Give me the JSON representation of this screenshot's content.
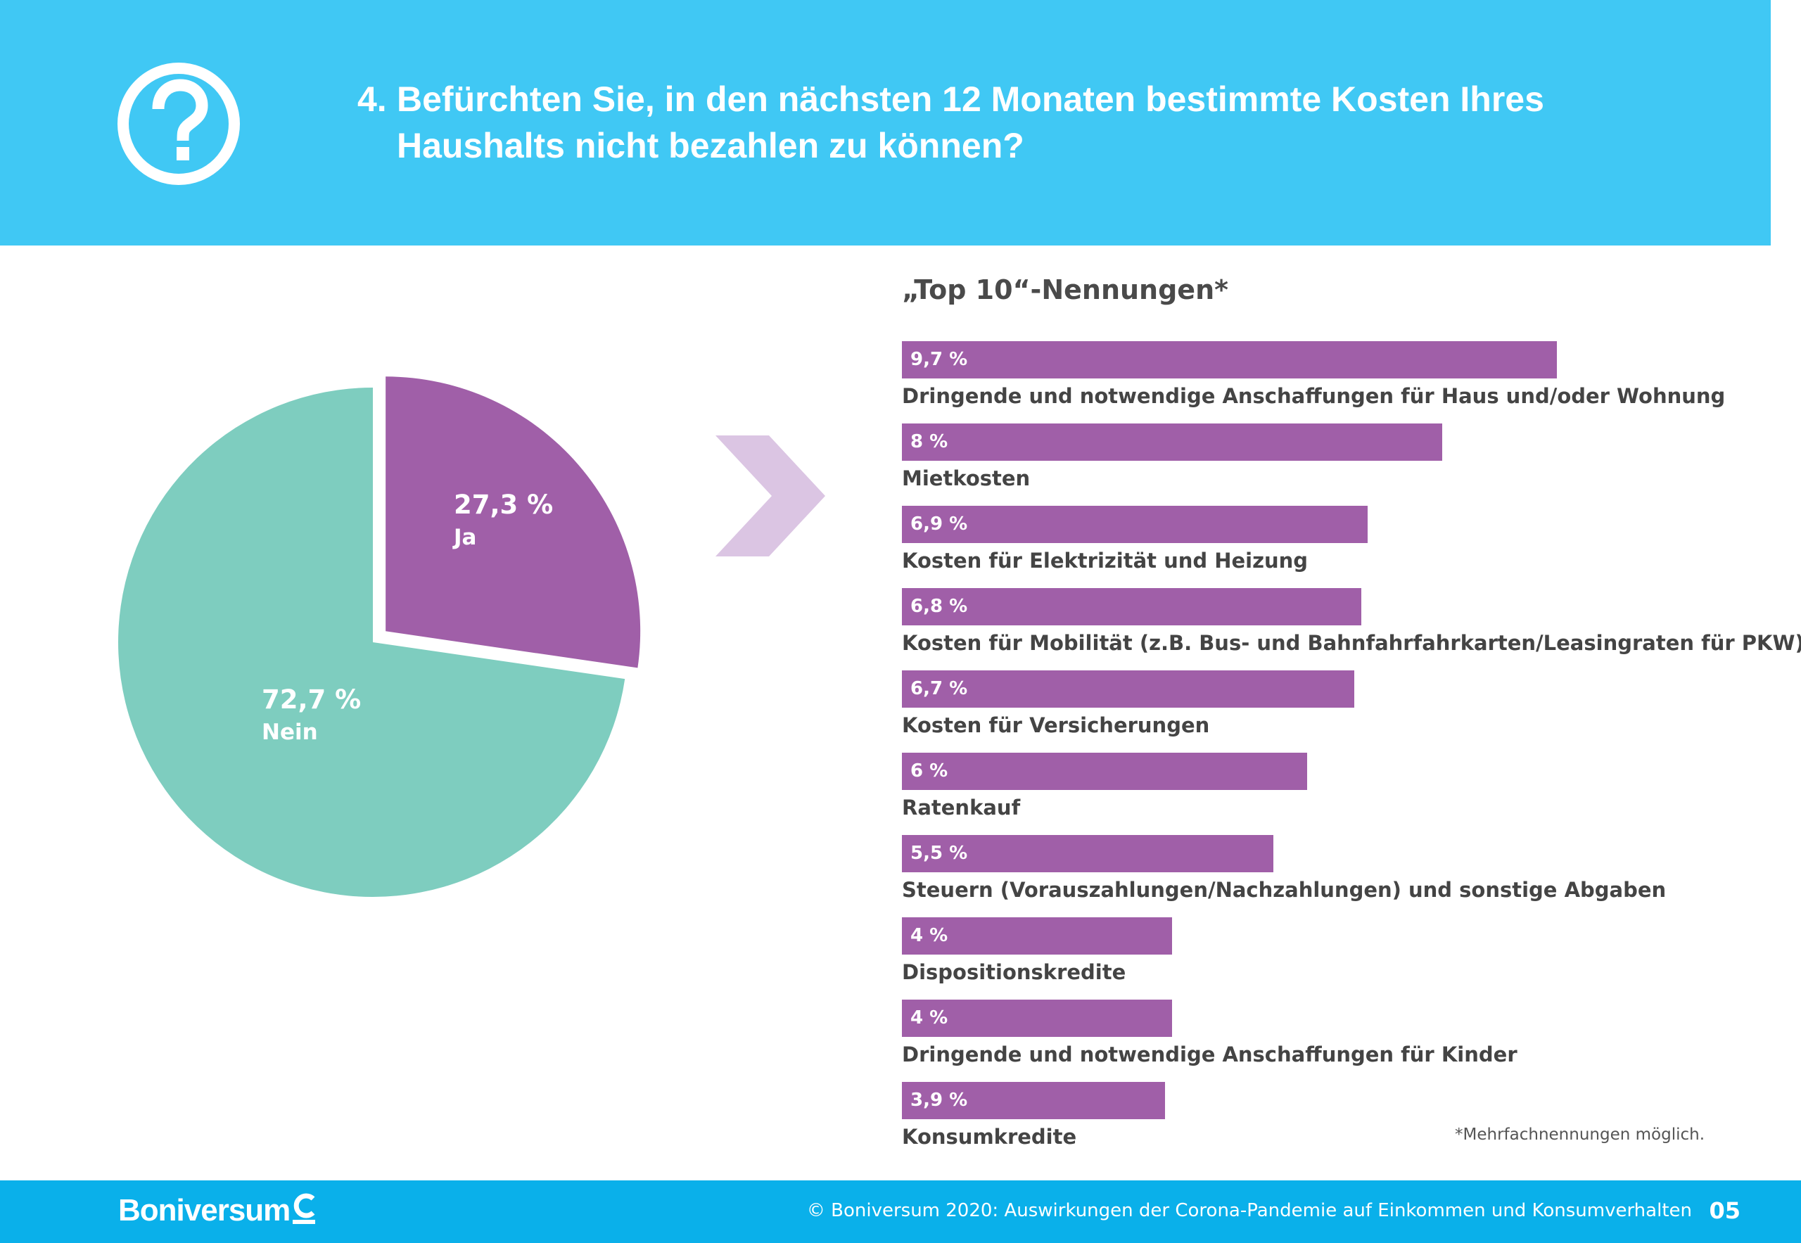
{
  "header": {
    "question_number": "4.",
    "question_line1": "Befürchten Sie, in den nächsten 12 Monaten bestimmte Kosten Ihres",
    "question_line2": "Haushalts nicht bezahlen zu können?",
    "icon": "question-circle-icon",
    "color": "#40c8f4"
  },
  "chart_data": [
    {
      "type": "pie",
      "slices": [
        {
          "label": "Ja",
          "value": 27.3,
          "value_text": "27,3 %",
          "color": "#a05fa8",
          "exploded": true
        },
        {
          "label": "Nein",
          "value": 72.7,
          "value_text": "72,7 %",
          "color": "#7ecdbf"
        }
      ]
    },
    {
      "type": "bar",
      "orientation": "horizontal",
      "title": "„Top 10“-Nennungen*",
      "color": "#a05fa8",
      "xlim": [
        0,
        9.7
      ],
      "categories": [
        "Dringende und notwendige Anschaffungen für Haus und/oder Wohnung",
        "Mietkosten",
        "Kosten für Elektrizität und Heizung",
        "Kosten für Mobilität (z.B. Bus- und Bahnfahrfahrkarten/Leasingraten für PKW)",
        "Kosten für Versicherungen",
        "Ratenkauf",
        "Steuern (Vorauszahlungen/Nachzahlungen) und sonstige Abgaben",
        "Dispositionskredite",
        "Dringende und notwendige Anschaffungen für Kinder",
        "Konsumkredite"
      ],
      "values": [
        9.7,
        8,
        6.9,
        6.8,
        6.7,
        6,
        5.5,
        4,
        4,
        3.9
      ],
      "value_labels": [
        "9,7 %",
        "8 %",
        "6,9 %",
        "6,8 %",
        "6,7 %",
        "6 %",
        "5,5 %",
        "4 %",
        "4 %",
        "3,9 %"
      ]
    }
  ],
  "footnote": "*Mehrfachnennungen möglich.",
  "footer": {
    "brand": "Boniversum",
    "copyright": "© Boniversum 2020: Auswirkungen der Corona-Pandemie auf Einkommen und Konsumverhalten",
    "page_number": "05",
    "color": "#0ab0ea"
  }
}
